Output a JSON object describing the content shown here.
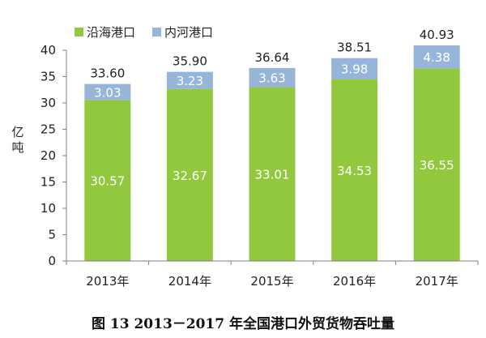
{
  "caption": "图 13    2013－2017 年全国港口外贸货物吞吐量",
  "chart_data": {
    "type": "bar",
    "stacked": true,
    "categories": [
      "2013年",
      "2014年",
      "2015年",
      "2016年",
      "2017年"
    ],
    "series": [
      {
        "name": "沿海港口",
        "color": "#92c83e",
        "values": [
          30.57,
          32.67,
          33.01,
          34.53,
          36.55
        ]
      },
      {
        "name": "内河港口",
        "color": "#97b5d9",
        "values": [
          3.03,
          3.23,
          3.63,
          3.98,
          4.38
        ]
      }
    ],
    "totals": [
      33.6,
      35.9,
      36.64,
      38.51,
      40.93
    ],
    "ylabel": "亿吨",
    "ylim": [
      0,
      40
    ],
    "yticks": [
      0,
      5,
      10,
      15,
      20,
      25,
      30,
      35,
      40
    ],
    "legend_position": "top-left",
    "grid": false
  }
}
